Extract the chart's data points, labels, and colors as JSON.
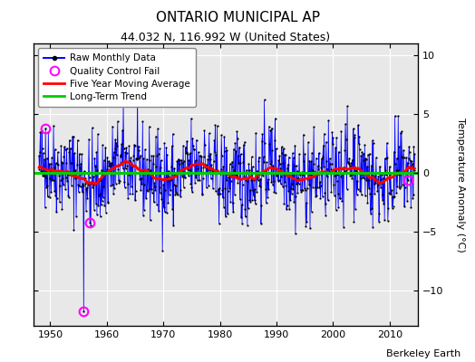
{
  "title": "ONTARIO MUNICIPAL AP",
  "subtitle": "44.032 N, 116.992 W (United States)",
  "ylabel": "Temperature Anomaly (°C)",
  "credit": "Berkeley Earth",
  "xlim": [
    1947,
    2015
  ],
  "ylim": [
    -13,
    11
  ],
  "yticks": [
    -10,
    -5,
    0,
    5,
    10
  ],
  "xticks": [
    1950,
    1960,
    1970,
    1980,
    1990,
    2000,
    2010
  ],
  "start_year": 1948.0,
  "bg_color": "#e8e8e8",
  "raw_color": "#0000ff",
  "dot_color": "#000000",
  "ma_color": "#ff0000",
  "trend_color": "#00cc00",
  "qc_color": "#ff00ff",
  "seed": 42,
  "n_months": 798,
  "noise_std": 1.9,
  "low_freq_amp1": 0.7,
  "low_freq_period1": 156,
  "low_freq_amp2": 0.3,
  "low_freq_period2": 84,
  "qc_fail_indices": [
    14,
    95,
    108,
    783
  ],
  "qc_fail_values": [
    3.8,
    -11.8,
    -4.2,
    -0.6
  ],
  "ma_window": 60,
  "trend_y": 0.0,
  "figsize": [
    5.24,
    4.0
  ],
  "dpi": 100,
  "title_fontsize": 11,
  "subtitle_fontsize": 9,
  "tick_labelsize": 8,
  "legend_fontsize": 7.5,
  "credit_fontsize": 8
}
